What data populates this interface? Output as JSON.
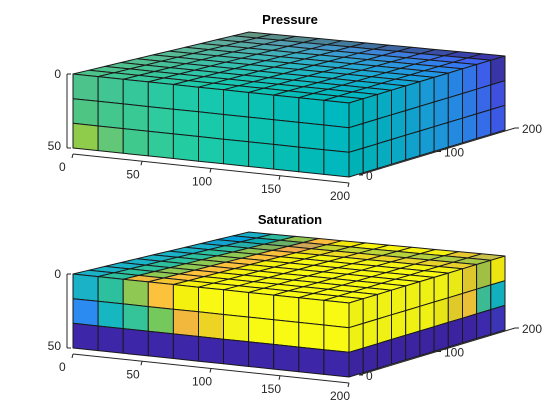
{
  "chart_data": [
    {
      "type": "heatmap",
      "title": "Pressure",
      "xlim": [
        0,
        200
      ],
      "ylim": [
        0,
        200
      ],
      "zlim": [
        0,
        50
      ],
      "x_ticks": [
        "0",
        "50",
        "100",
        "150",
        "200"
      ],
      "y_ticks": [
        "0",
        "100",
        "200"
      ],
      "z_ticks": [
        "0",
        "50"
      ],
      "grid": "11 x 11 x 3 cells",
      "front_face": [
        [
          "#4cc38a",
          "#41c592",
          "#35c79a",
          "#2ac9a2",
          "#1fcaa9",
          "#16c8ae",
          "#10c5b1",
          "#0bc2b4",
          "#06beb7",
          "#02bbbb",
          "#00b8bf"
        ],
        [
          "#4fc584",
          "#44c78c",
          "#38c994",
          "#2dcb9d",
          "#22cca5",
          "#19caaa",
          "#12c7ae",
          "#0cc3b2",
          "#07bfb5",
          "#02bcb9",
          "#00b8bd"
        ],
        [
          "#8fcc4c",
          "#62c878",
          "#40c98c",
          "#30cb99",
          "#24cca2",
          "#1acaa8",
          "#12c6ad",
          "#0cc2b1",
          "#07beb5",
          "#02bbb9",
          "#00b8bd"
        ]
      ],
      "right_face": [
        [
          "#00b8bf",
          "#03b6c4",
          "#08b2ca",
          "#0dadd1",
          "#13a7d8",
          "#1aa0df",
          "#2196e6",
          "#2a8aec",
          "#3479f1",
          "#3f62f2",
          "#3b37ad"
        ],
        [
          "#00b8bd",
          "#03b6c2",
          "#07b2c8",
          "#0caecf",
          "#12a8d6",
          "#18a2dc",
          "#1f99e3",
          "#278eea",
          "#307fef",
          "#3a6cf2",
          "#4153e6"
        ],
        [
          "#00b8bd",
          "#03b6c1",
          "#07b3c7",
          "#0bafcd",
          "#11a9d4",
          "#17a3db",
          "#1e9be2",
          "#2590e8",
          "#2d83ee",
          "#3672f1",
          "#3f5df0"
        ]
      ]
    },
    {
      "type": "heatmap",
      "title": "Saturation",
      "xlim": [
        0,
        200
      ],
      "ylim": [
        0,
        200
      ],
      "zlim": [
        0,
        50
      ],
      "x_ticks": [
        "0",
        "50",
        "100",
        "150",
        "200"
      ],
      "y_ticks": [
        "0",
        "100",
        "200"
      ],
      "z_ticks": [
        "0",
        "50"
      ],
      "grid": "11 x 11 x 3 cells",
      "front_face": [
        [
          "#19b2c7",
          "#2dc09e",
          "#8fc852",
          "#fcc23c",
          "#f5f10e",
          "#f9f812",
          "#f9fa14",
          "#f9fa14",
          "#f9fa14",
          "#f9fa14",
          "#f9fa14"
        ],
        [
          "#2c8bf0",
          "#17b7c2",
          "#35c49a",
          "#74c85c",
          "#f2b83e",
          "#ecd324",
          "#f4f416",
          "#f9fa14",
          "#f9fa14",
          "#f9fa14",
          "#f9fa14"
        ],
        [
          "#3e26a8",
          "#3e26a8",
          "#3e26a8",
          "#3e26a8",
          "#3e26a8",
          "#3e26a8",
          "#3e26a8",
          "#3e26a8",
          "#3e26a8",
          "#3e26a8",
          "#3e26a8"
        ]
      ],
      "right_face": [
        [
          "#f9fa14",
          "#f9fa14",
          "#f9fa14",
          "#f9fa14",
          "#f9fa14",
          "#f9fa14",
          "#f9fa14",
          "#f3f416",
          "#e7cf2e",
          "#a8c846",
          "#f6ef10"
        ],
        [
          "#f9fa14",
          "#f9fa14",
          "#f9fa14",
          "#f9fa14",
          "#f9fa14",
          "#f9fa14",
          "#f2ef18",
          "#e9d22c",
          "#f5c83a",
          "#3fc29a",
          "#12b7c4"
        ],
        [
          "#3e26a8",
          "#3e26a8",
          "#3e26a8",
          "#3e26a8",
          "#3e26a8",
          "#3e26a8",
          "#3e26a8",
          "#3e26a8",
          "#3e26a8",
          "#3f2bb3",
          "#3d36bd"
        ]
      ],
      "top_face_highlights": [
        {
          "i": 2,
          "j": 0,
          "color": "#f0b93e"
        },
        {
          "i": 3,
          "j": 0,
          "color": "#f4c531"
        },
        {
          "i": 9,
          "j": 10,
          "color": "#e8c830"
        },
        {
          "i": 10,
          "j": 10,
          "color": "#c8c24a"
        }
      ]
    }
  ]
}
